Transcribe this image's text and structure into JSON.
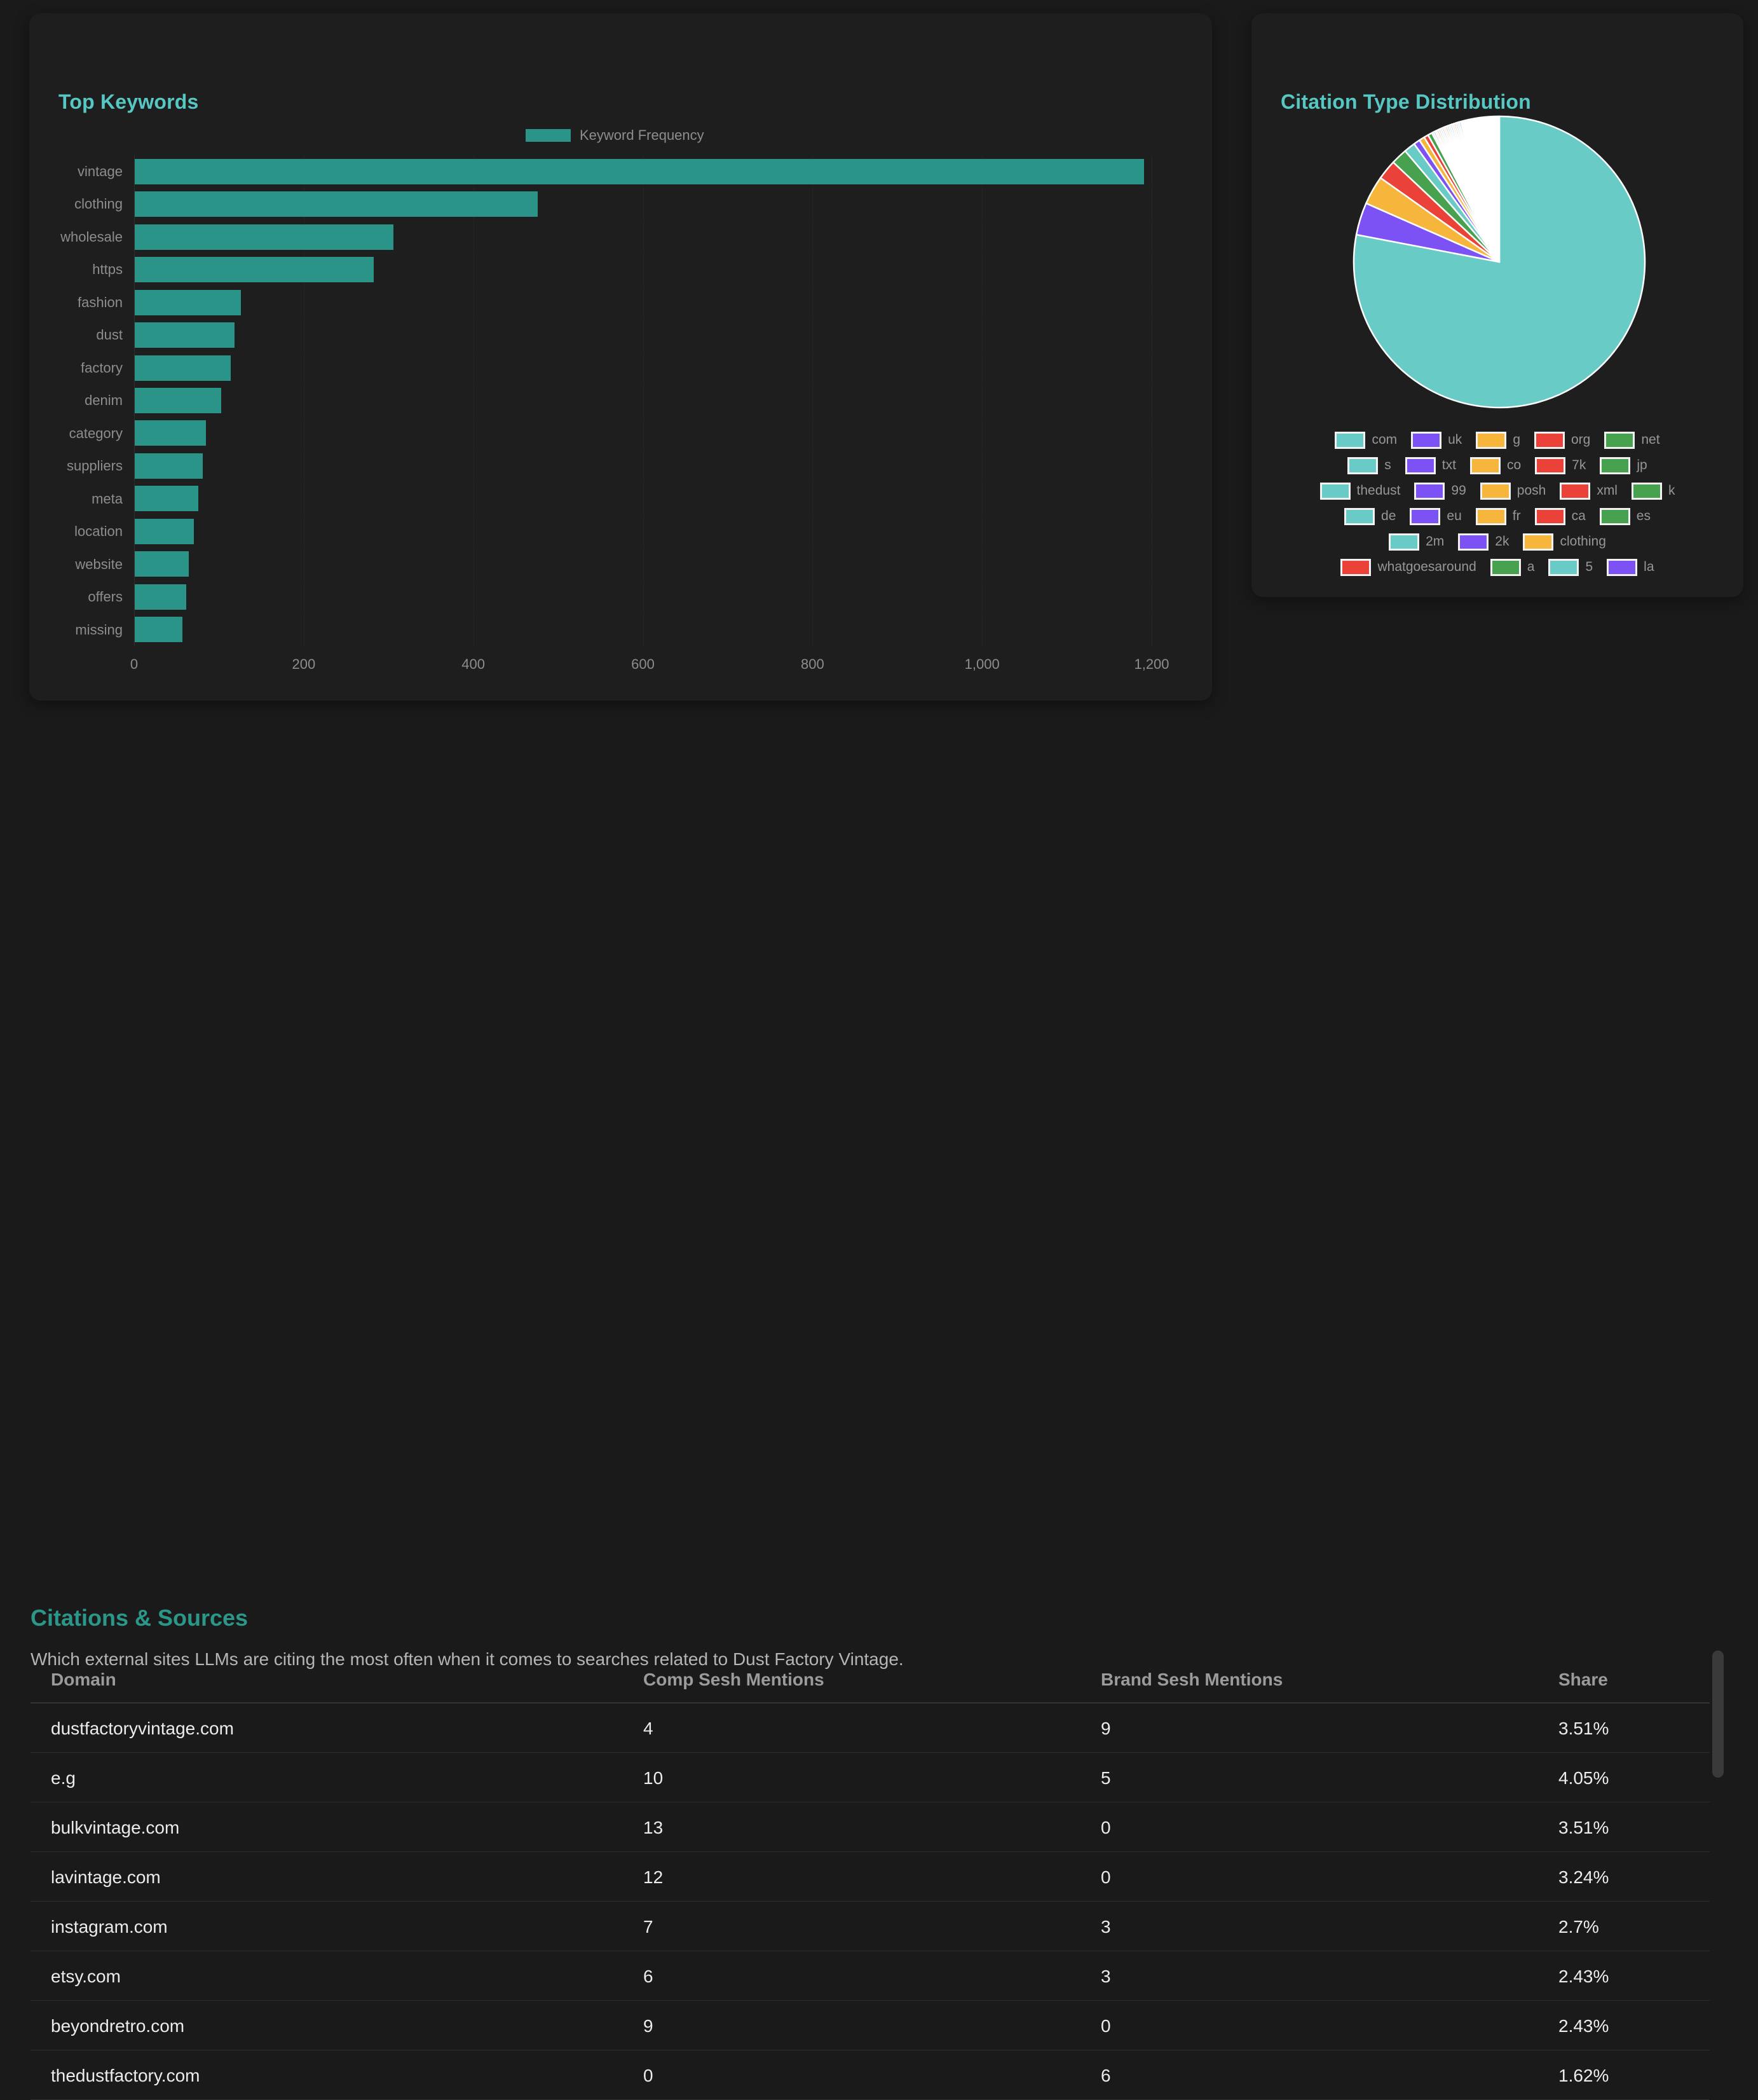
{
  "keyword_card": {
    "title": "Top Keywords",
    "legend_label": "Keyword Frequency"
  },
  "pie_card": {
    "title": "Citation Type Distribution"
  },
  "citations": {
    "heading": "Citations & Sources",
    "description": "Which external sites LLMs are citing the most often when it comes to searches related to Dust Factory Vintage.",
    "columns": [
      "Domain",
      "Comp Sesh Mentions",
      "Brand Sesh Mentions",
      "Share"
    ],
    "rows": [
      [
        "dustfactoryvintage.com",
        "4",
        "9",
        "3.51%"
      ],
      [
        "e.g",
        "10",
        "5",
        "4.05%"
      ],
      [
        "bulkvintage.com",
        "13",
        "0",
        "3.51%"
      ],
      [
        "lavintage.com",
        "12",
        "0",
        "3.24%"
      ],
      [
        "instagram.com",
        "7",
        "3",
        "2.7%"
      ],
      [
        "etsy.com",
        "6",
        "3",
        "2.43%"
      ],
      [
        "beyondretro.com",
        "9",
        "0",
        "2.43%"
      ],
      [
        "thedustfactory.com",
        "0",
        "6",
        "1.62%"
      ]
    ]
  },
  "colors": {
    "bar": "#2b9488",
    "title_teal": "#56c7c2",
    "heading_teal": "#2b9788",
    "pie_teal": "#69cbc6",
    "pie_purple": "#7c52f5",
    "pie_yellow": "#f6b63c",
    "pie_red": "#ea4238",
    "pie_green": "#47a14e",
    "pie_white": "#ffffff"
  },
  "chart_data": [
    {
      "type": "bar",
      "title": "Top Keywords",
      "orientation": "horizontal",
      "legend": [
        "Keyword Frequency"
      ],
      "legend_position": "top",
      "grid": true,
      "categories": [
        "vintage",
        "clothing",
        "wholesale",
        "https",
        "fashion",
        "dust",
        "factory",
        "denim",
        "category",
        "suppliers",
        "meta",
        "location",
        "website",
        "offers",
        "missing"
      ],
      "values": [
        1190,
        475,
        305,
        282,
        125,
        118,
        113,
        102,
        84,
        80,
        75,
        70,
        64,
        61,
        56
      ],
      "xlabel": "",
      "ylabel": "",
      "xlim": [
        0,
        1200
      ],
      "x_ticks": [
        {
          "value": 0,
          "label": "0"
        },
        {
          "value": 200,
          "label": "200"
        },
        {
          "value": 400,
          "label": "400"
        },
        {
          "value": 600,
          "label": "600"
        },
        {
          "value": 800,
          "label": "800"
        },
        {
          "value": 1000,
          "label": "1,000"
        },
        {
          "value": 1200,
          "label": "1,200"
        }
      ]
    },
    {
      "type": "pie",
      "title": "Citation Type Distribution",
      "legend_position": "bottom",
      "legend_rows": [
        5,
        5,
        5,
        5,
        3,
        4
      ],
      "slices": [
        {
          "label": "com",
          "pct": 78.0,
          "color": "#69cbc6"
        },
        {
          "label": "uk",
          "pct": 3.6,
          "color": "#7c52f5"
        },
        {
          "label": "g",
          "pct": 3.2,
          "color": "#f6b63c"
        },
        {
          "label": "org",
          "pct": 2.2,
          "color": "#ea4238"
        },
        {
          "label": "net",
          "pct": 1.8,
          "color": "#47a14e"
        },
        {
          "label": "s",
          "pct": 1.25,
          "color": "#69cbc6"
        },
        {
          "label": "txt",
          "pct": 0.7,
          "color": "#7c52f5"
        },
        {
          "label": "co",
          "pct": 0.62,
          "color": "#f6b63c"
        },
        {
          "label": "7k",
          "pct": 0.48,
          "color": "#ea4238"
        },
        {
          "label": "jp",
          "pct": 0.48,
          "color": "#47a14e"
        },
        {
          "label": "thedust",
          "pct": 0.2,
          "color": "#69cbc6"
        },
        {
          "label": "99",
          "pct": 0.2,
          "color": "#7c52f5"
        },
        {
          "label": "posh",
          "pct": 0.2,
          "color": "#f6b63c"
        },
        {
          "label": "xml",
          "pct": 0.2,
          "color": "#ea4238"
        },
        {
          "label": "k",
          "pct": 0.2,
          "color": "#47a14e"
        },
        {
          "label": "de",
          "pct": 0.2,
          "color": "#69cbc6"
        },
        {
          "label": "eu",
          "pct": 0.2,
          "color": "#7c52f5"
        },
        {
          "label": "fr",
          "pct": 0.2,
          "color": "#f6b63c"
        },
        {
          "label": "ca",
          "pct": 0.2,
          "color": "#ea4238"
        },
        {
          "label": "es",
          "pct": 0.2,
          "color": "#47a14e"
        },
        {
          "label": "2m",
          "pct": 0.2,
          "color": "#69cbc6"
        },
        {
          "label": "2k",
          "pct": 0.2,
          "color": "#7c52f5"
        },
        {
          "label": "clothing",
          "pct": 0.2,
          "color": "#f6b63c"
        },
        {
          "label": "whatgoesaround",
          "pct": 0.2,
          "color": "#ea4238"
        },
        {
          "label": "a",
          "pct": 0.2,
          "color": "#47a14e"
        },
        {
          "label": "5",
          "pct": 0.2,
          "color": "#69cbc6"
        },
        {
          "label": "la",
          "pct": 0.2,
          "color": "#7c52f5"
        },
        {
          "label": "",
          "pct": 4.27,
          "color": "#ffffff",
          "in_legend": false
        }
      ]
    }
  ]
}
